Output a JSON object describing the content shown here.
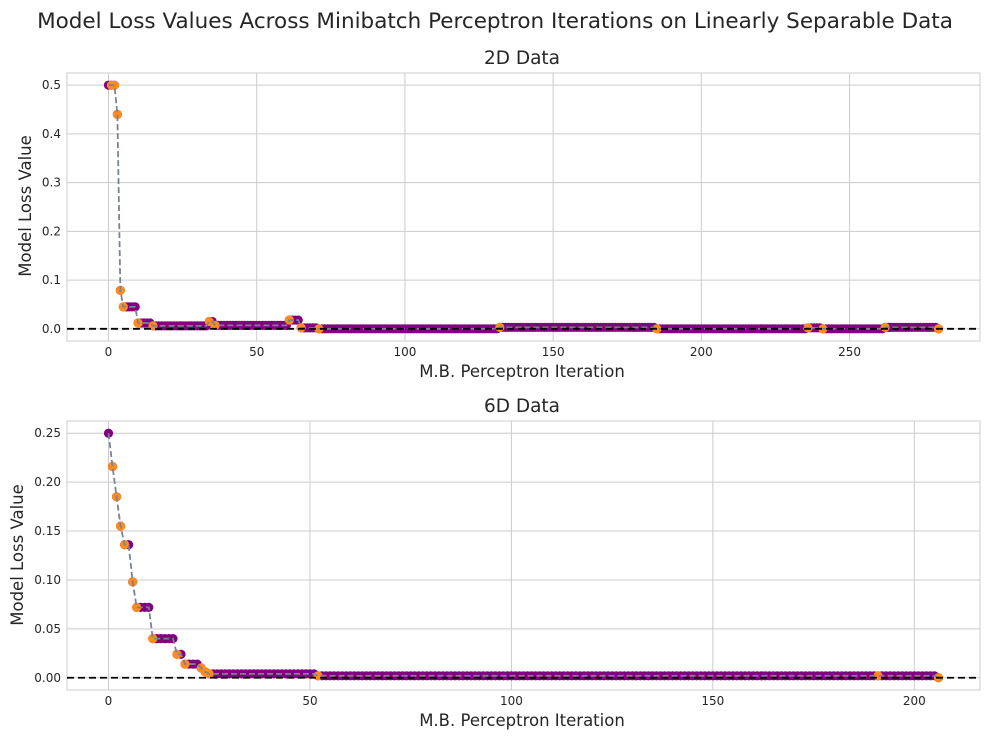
{
  "title": "Model Loss Values Across Minibatch Perceptron Iterations on Linearly Separable Data",
  "colors": {
    "point": "#800080",
    "update_point": "#ff8c1a",
    "line": "#7a8491",
    "reference": "#000000",
    "grid": "#cccccc",
    "frame": "#cccccc"
  },
  "chart_data": [
    {
      "type": "scatter",
      "title": "2D Data",
      "xlabel": "M.B. Perceptron Iteration",
      "ylabel": "Model Loss Value",
      "xlim": [
        -14,
        294
      ],
      "ylim": [
        -0.025,
        0.525
      ],
      "xticks": [
        0,
        50,
        100,
        150,
        200,
        250
      ],
      "yticks": [
        0.0,
        0.1,
        0.2,
        0.3,
        0.4,
        0.5
      ],
      "ytick_labels": [
        "0.0",
        "0.1",
        "0.2",
        "0.3",
        "0.4",
        "0.5"
      ],
      "x_max": 280,
      "reference_line_y": 0.0,
      "grid": true,
      "steps": [
        {
          "x": 0,
          "y": 0.5
        },
        {
          "x": 3,
          "y": 0.44
        },
        {
          "x": 4,
          "y": 0.079
        },
        {
          "x": 5,
          "y": 0.045
        },
        {
          "x": 10,
          "y": 0.012
        },
        {
          "x": 15,
          "y": 0.006
        },
        {
          "x": 34,
          "y": 0.015
        },
        {
          "x": 36,
          "y": 0.007
        },
        {
          "x": 61,
          "y": 0.018
        },
        {
          "x": 65,
          "y": 0.002
        },
        {
          "x": 71,
          "y": 0.0
        },
        {
          "x": 132,
          "y": 0.003
        },
        {
          "x": 185,
          "y": 0.0
        },
        {
          "x": 236,
          "y": 0.002
        },
        {
          "x": 241,
          "y": 0.0
        },
        {
          "x": 262,
          "y": 0.003
        },
        {
          "x": 280,
          "y": 0.0
        }
      ],
      "update_points": [
        1,
        2,
        3,
        4,
        5,
        10,
        15,
        34,
        36,
        61,
        65,
        71,
        132,
        185,
        236,
        241,
        262,
        280
      ]
    },
    {
      "type": "scatter",
      "title": "6D Data",
      "xlabel": "M.B. Perceptron Iteration",
      "ylabel": "Model Loss Value",
      "xlim": [
        -10.3,
        216.3
      ],
      "ylim": [
        -0.0125,
        0.2625
      ],
      "xticks": [
        0,
        50,
        100,
        150,
        200
      ],
      "yticks": [
        0.0,
        0.05,
        0.1,
        0.15,
        0.2,
        0.25
      ],
      "ytick_labels": [
        "0.00",
        "0.05",
        "0.10",
        "0.15",
        "0.20",
        "0.25"
      ],
      "x_max": 206,
      "reference_line_y": 0.0,
      "grid": true,
      "steps": [
        {
          "x": 0,
          "y": 0.25
        },
        {
          "x": 1,
          "y": 0.216
        },
        {
          "x": 2,
          "y": 0.185
        },
        {
          "x": 3,
          "y": 0.155
        },
        {
          "x": 4,
          "y": 0.136
        },
        {
          "x": 6,
          "y": 0.098
        },
        {
          "x": 7,
          "y": 0.072
        },
        {
          "x": 11,
          "y": 0.04
        },
        {
          "x": 17,
          "y": 0.024
        },
        {
          "x": 19,
          "y": 0.014
        },
        {
          "x": 23,
          "y": 0.01
        },
        {
          "x": 24,
          "y": 0.006
        },
        {
          "x": 25,
          "y": 0.004
        },
        {
          "x": 52,
          "y": 0.002
        },
        {
          "x": 191,
          "y": 0.002
        },
        {
          "x": 206,
          "y": 0.0
        }
      ],
      "update_points": [
        1,
        2,
        3,
        4,
        6,
        7,
        11,
        17,
        19,
        23,
        24,
        25,
        52,
        191,
        206
      ]
    }
  ]
}
